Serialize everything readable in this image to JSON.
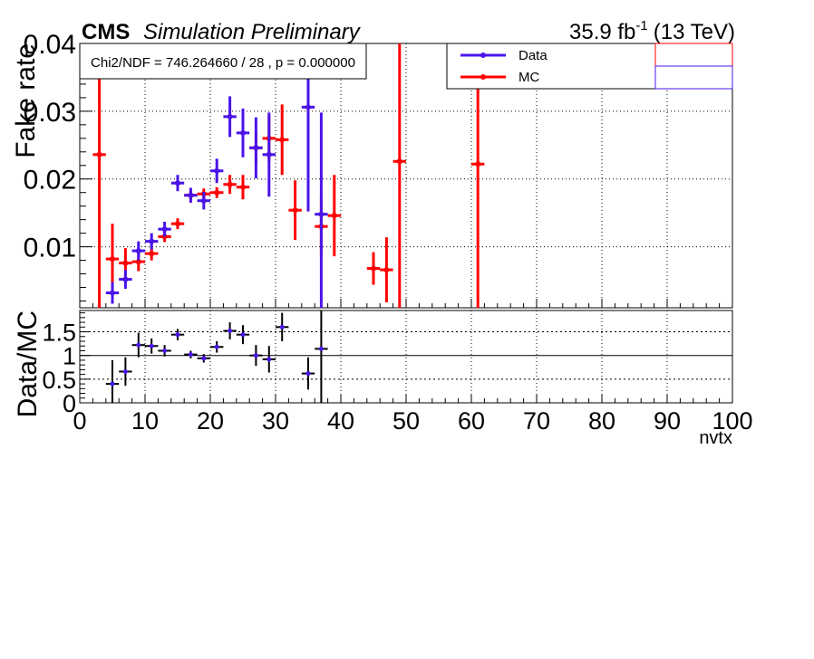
{
  "header": {
    "experiment": "CMS",
    "status": "Simulation Preliminary",
    "lumi": "35.9 fb",
    "lumi_exp": "-1",
    "energy": "(13 TeV)"
  },
  "fit_box": "Chi2/NDF = 746.264660 / 28 , p = 0.000000",
  "colors": {
    "data": "#4a14e8",
    "mc": "#ff0000",
    "ratio": "#000000"
  },
  "chart_data": [
    {
      "type": "scatter",
      "ylabel": "Fake rate",
      "xlabel": "",
      "xlim": [
        0,
        100
      ],
      "ylim": [
        0.001,
        0.04
      ],
      "grid": true,
      "legend": "top-right",
      "x_bin_half_width": 1,
      "yticks": [
        0.01,
        0.02,
        0.03,
        0.04
      ],
      "ytick_labels": [
        "0.01",
        "0.02",
        "0.03",
        "0.04"
      ],
      "series": [
        {
          "name": "Data",
          "x": [
            5,
            7,
            9,
            11,
            13,
            15,
            17,
            19,
            21,
            23,
            25,
            27,
            29,
            35,
            37
          ],
          "y": [
            0.0032,
            0.0052,
            0.0094,
            0.0108,
            0.0126,
            0.0194,
            0.0176,
            0.0168,
            0.0212,
            0.0292,
            0.0268,
            0.0246,
            0.0236,
            0.0306,
            0.0148
          ],
          "yerr": [
            0.0016,
            0.0014,
            0.0014,
            0.0012,
            0.0011,
            0.0012,
            0.0011,
            0.0013,
            0.0018,
            0.003,
            0.0036,
            0.0045,
            0.0062,
            0.0154,
            0.015
          ]
        },
        {
          "name": "MC",
          "x": [
            3,
            5,
            7,
            9,
            11,
            13,
            15,
            17,
            19,
            21,
            23,
            25,
            27,
            29,
            31,
            33,
            37,
            39,
            45,
            47,
            49,
            61
          ],
          "y": [
            0.0236,
            0.0082,
            0.0076,
            0.0078,
            0.009,
            0.0115,
            0.0134,
            0.0176,
            0.0178,
            0.018,
            0.0192,
            0.0188,
            0.0246,
            0.026,
            0.0258,
            0.0154,
            0.013,
            0.0146,
            0.0068,
            0.0066,
            0.0226,
            0.0222
          ],
          "yerr": [
            0.0226,
            0.0052,
            0.0022,
            0.0014,
            0.001,
            0.0008,
            0.0008,
            0.0007,
            0.0008,
            0.0008,
            0.0014,
            0.0018,
            0.0024,
            0.0034,
            0.0052,
            0.0044,
            0.0042,
            0.006,
            0.0024,
            0.0048,
            0.023,
            0.023
          ]
        }
      ]
    },
    {
      "type": "scatter",
      "ylabel": "Data/MC",
      "xlabel": "nvtx",
      "xlim": [
        0,
        100
      ],
      "ylim": [
        0,
        1.95
      ],
      "grid": true,
      "reference_lines": [
        0.5,
        1,
        1.5
      ],
      "xticks": [
        0,
        10,
        20,
        30,
        40,
        50,
        60,
        70,
        80,
        90,
        100
      ],
      "xtick_labels": [
        "0",
        "10",
        "20",
        "30",
        "40",
        "50",
        "60",
        "70",
        "80",
        "90",
        "100"
      ],
      "yticks": [
        0,
        0.5,
        1,
        1.5
      ],
      "ytick_labels": [
        "0",
        "0.5",
        "1",
        "1.5"
      ],
      "series": [
        {
          "name": "",
          "x": [
            5,
            7,
            9,
            11,
            13,
            15,
            17,
            19,
            21,
            23,
            25,
            27,
            29,
            31,
            35,
            37
          ],
          "y": [
            0.4,
            0.66,
            1.22,
            1.2,
            1.1,
            1.44,
            1.02,
            0.94,
            1.18,
            1.52,
            1.44,
            1.0,
            0.92,
            1.6,
            0.62,
            1.14
          ],
          "yerr": [
            0.5,
            0.3,
            0.26,
            0.16,
            0.12,
            0.12,
            0.08,
            0.09,
            0.12,
            0.18,
            0.2,
            0.22,
            0.28,
            0.3,
            0.34,
            1.2
          ]
        }
      ]
    }
  ]
}
